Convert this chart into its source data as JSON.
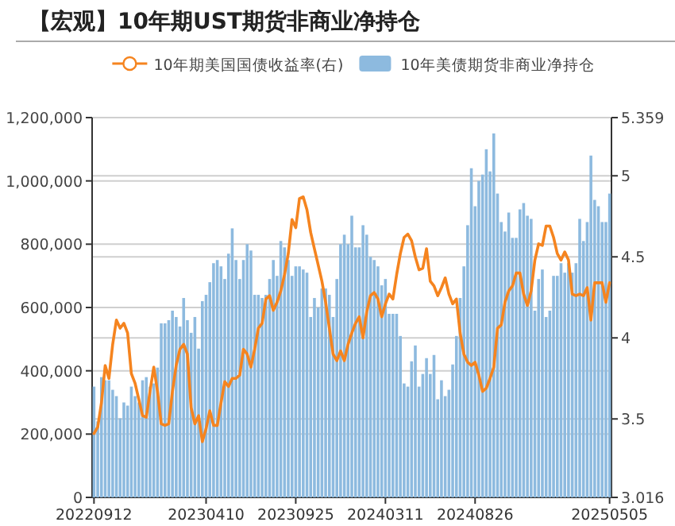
{
  "chart_data": {
    "type": "bar",
    "title": "【宏观】10年期UST期货非商业净持仓",
    "categories": [
      "20220912",
      null,
      null,
      null,
      null,
      null,
      null,
      null,
      null,
      null,
      null,
      null,
      null,
      null,
      null,
      null,
      null,
      null,
      null,
      null,
      null,
      null,
      null,
      null,
      null,
      null,
      null,
      null,
      null,
      null,
      "20230410",
      null,
      null,
      null,
      null,
      null,
      null,
      null,
      null,
      null,
      null,
      null,
      null,
      null,
      null,
      null,
      null,
      null,
      null,
      null,
      null,
      null,
      null,
      null,
      "20230925",
      null,
      null,
      null,
      null,
      null,
      null,
      null,
      null,
      null,
      null,
      null,
      null,
      null,
      null,
      null,
      null,
      null,
      null,
      null,
      null,
      null,
      null,
      null,
      "20240311",
      null,
      null,
      null,
      null,
      null,
      null,
      null,
      null,
      null,
      null,
      null,
      null,
      null,
      null,
      null,
      null,
      null,
      null,
      null,
      null,
      null,
      null,
      null,
      "20240826",
      null,
      null,
      null,
      null,
      null,
      null,
      null,
      null,
      null,
      null,
      null,
      null,
      null,
      null,
      null,
      null,
      null,
      null,
      null,
      null,
      null,
      null,
      null,
      null,
      null,
      null,
      null,
      null,
      null,
      null,
      null,
      null,
      null,
      null,
      null,
      "20250505"
    ],
    "series": [
      {
        "name": "10年期美国国债收益率(右)",
        "type": "line",
        "axis": "y2",
        "color": "#f5841f",
        "values": [
          3.41,
          3.45,
          3.6,
          3.83,
          3.75,
          3.96,
          4.11,
          4.06,
          4.09,
          4.03,
          3.78,
          3.72,
          3.62,
          3.52,
          3.51,
          3.67,
          3.82,
          3.67,
          3.47,
          3.46,
          3.47,
          3.67,
          3.83,
          3.93,
          3.96,
          3.9,
          3.57,
          3.47,
          3.52,
          3.36,
          3.44,
          3.55,
          3.46,
          3.46,
          3.6,
          3.73,
          3.7,
          3.75,
          3.75,
          3.77,
          3.93,
          3.9,
          3.82,
          3.93,
          4.06,
          4.09,
          4.24,
          4.26,
          4.17,
          4.22,
          4.29,
          4.39,
          4.52,
          4.73,
          4.68,
          4.86,
          4.87,
          4.79,
          4.65,
          4.55,
          4.45,
          4.35,
          4.22,
          4.06,
          3.9,
          3.86,
          3.92,
          3.86,
          3.96,
          4.03,
          4.09,
          4.13,
          4.0,
          4.16,
          4.26,
          4.28,
          4.24,
          4.13,
          4.21,
          4.27,
          4.24,
          4.39,
          4.52,
          4.62,
          4.64,
          4.6,
          4.5,
          4.42,
          4.43,
          4.55,
          4.35,
          4.32,
          4.26,
          4.31,
          4.37,
          4.27,
          4.21,
          4.24,
          4.03,
          3.9,
          3.85,
          3.83,
          3.85,
          3.77,
          3.67,
          3.69,
          3.75,
          3.82,
          4.06,
          4.08,
          4.22,
          4.29,
          4.32,
          4.4,
          4.4,
          4.27,
          4.2,
          4.29,
          4.48,
          4.58,
          4.57,
          4.69,
          4.69,
          4.62,
          4.52,
          4.48,
          4.53,
          4.48,
          4.27,
          4.26,
          4.27,
          4.26,
          4.31,
          4.11,
          4.34,
          4.34,
          4.34,
          4.22,
          4.34
        ]
      },
      {
        "name": "10年美债期货非商业净持仓",
        "color": "#8dbadf",
        "values": [
          350000,
          240000,
          380000,
          370000,
          370000,
          340000,
          320000,
          250000,
          300000,
          290000,
          350000,
          320000,
          300000,
          370000,
          380000,
          350000,
          360000,
          410000,
          550000,
          550000,
          560000,
          590000,
          570000,
          540000,
          630000,
          560000,
          520000,
          570000,
          470000,
          620000,
          640000,
          680000,
          740000,
          750000,
          730000,
          690000,
          770000,
          850000,
          750000,
          690000,
          750000,
          800000,
          780000,
          640000,
          640000,
          630000,
          640000,
          690000,
          750000,
          700000,
          810000,
          790000,
          750000,
          700000,
          730000,
          730000,
          720000,
          710000,
          570000,
          630000,
          600000,
          660000,
          660000,
          640000,
          570000,
          690000,
          800000,
          830000,
          800000,
          890000,
          790000,
          790000,
          860000,
          830000,
          760000,
          750000,
          730000,
          670000,
          690000,
          580000,
          580000,
          580000,
          510000,
          360000,
          350000,
          430000,
          480000,
          350000,
          390000,
          440000,
          390000,
          450000,
          310000,
          370000,
          320000,
          340000,
          420000,
          510000,
          630000,
          730000,
          860000,
          1040000,
          920000,
          1000000,
          1020000,
          1100000,
          1030000,
          1150000,
          960000,
          870000,
          840000,
          900000,
          820000,
          820000,
          910000,
          930000,
          890000,
          880000,
          590000,
          690000,
          720000,
          570000,
          590000,
          700000,
          700000,
          740000,
          710000,
          740000,
          710000,
          740000,
          880000,
          810000,
          870000,
          1080000,
          940000,
          920000,
          870000,
          870000,
          960000
        ]
      }
    ],
    "ylim": [
      0,
      1200000
    ],
    "yticks": [
      0,
      {
        "value": 200000,
        "label": "200,000"
      },
      {
        "value": 400000,
        "label": "400,000"
      },
      {
        "value": 600000,
        "label": "600,000"
      },
      {
        "value": 800000,
        "label": "800,000"
      },
      {
        "value": 1000000,
        "label": "1,000,000"
      },
      {
        "value": 1200000,
        "label": "1,200,000"
      }
    ],
    "y2lim": [
      3.016,
      5.359
    ],
    "y2ticks": [
      3.016,
      3.5,
      4,
      4.5,
      5,
      5.359
    ],
    "grid": "y",
    "legend": "top"
  }
}
